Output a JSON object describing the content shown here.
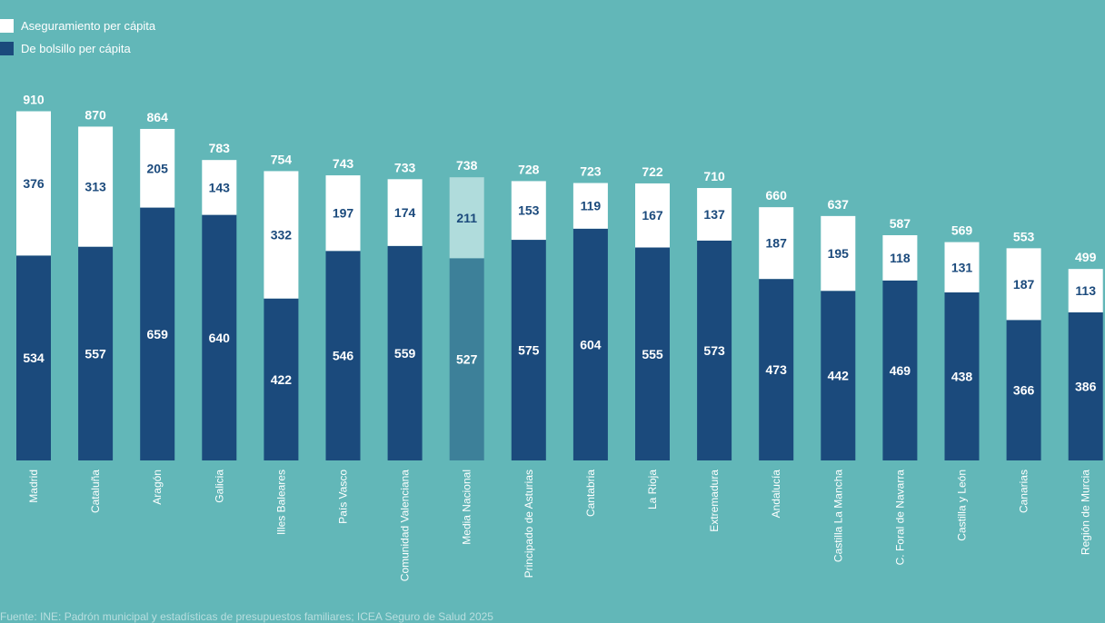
{
  "chart_data": {
    "type": "bar",
    "stacked": true,
    "categories": [
      "Madrid",
      "Cataluña",
      "Aragón",
      "Galicia",
      "Illes Baleares",
      "País Vasco",
      "Comunidad Valenciana",
      "Media Nacional",
      "Principado de Asturias",
      "Cantabria",
      "La Rioja",
      "Extremadura",
      "Andalucía",
      "Castilla La Mancha",
      "C. Foral de Navarra",
      "Castilla y León",
      "Canarias",
      "Región de Murcia"
    ],
    "series": [
      {
        "name": "De bolsillo per cápita",
        "values": [
          534,
          557,
          659,
          640,
          422,
          546,
          559,
          527,
          575,
          604,
          555,
          573,
          473,
          442,
          469,
          438,
          366,
          386
        ],
        "color": "#1b4a7c",
        "highlight_color": "#3d8099"
      },
      {
        "name": "Aseguramiento per cápita",
        "values": [
          376,
          313,
          205,
          143,
          332,
          197,
          174,
          211,
          153,
          119,
          167,
          137,
          187,
          195,
          118,
          131,
          187,
          113
        ],
        "color": "#ffffff",
        "highlight_color": "#b0dcdc"
      }
    ],
    "totals": [
      910,
      870,
      864,
      783,
      754,
      743,
      733,
      738,
      728,
      723,
      722,
      710,
      660,
      637,
      587,
      569,
      553,
      499
    ],
    "highlight_category": "Media Nacional",
    "legend_position": "top-left",
    "ylim": [
      0,
      910
    ],
    "grid": false
  },
  "legend": [
    {
      "label": "Aseguramiento per cápita",
      "color": "#ffffff"
    },
    {
      "label": "De bolsillo per cápita",
      "color": "#1b4a7c"
    }
  ],
  "source": "Fuente: INE: Padrón municipal y estadísticas de presupuestos familiares; ICEA Seguro de Salud 2025",
  "colors": {
    "background": "#62b7b8",
    "label_on_white": "#1b4a7c",
    "label_on_dark": "#ffffff"
  }
}
